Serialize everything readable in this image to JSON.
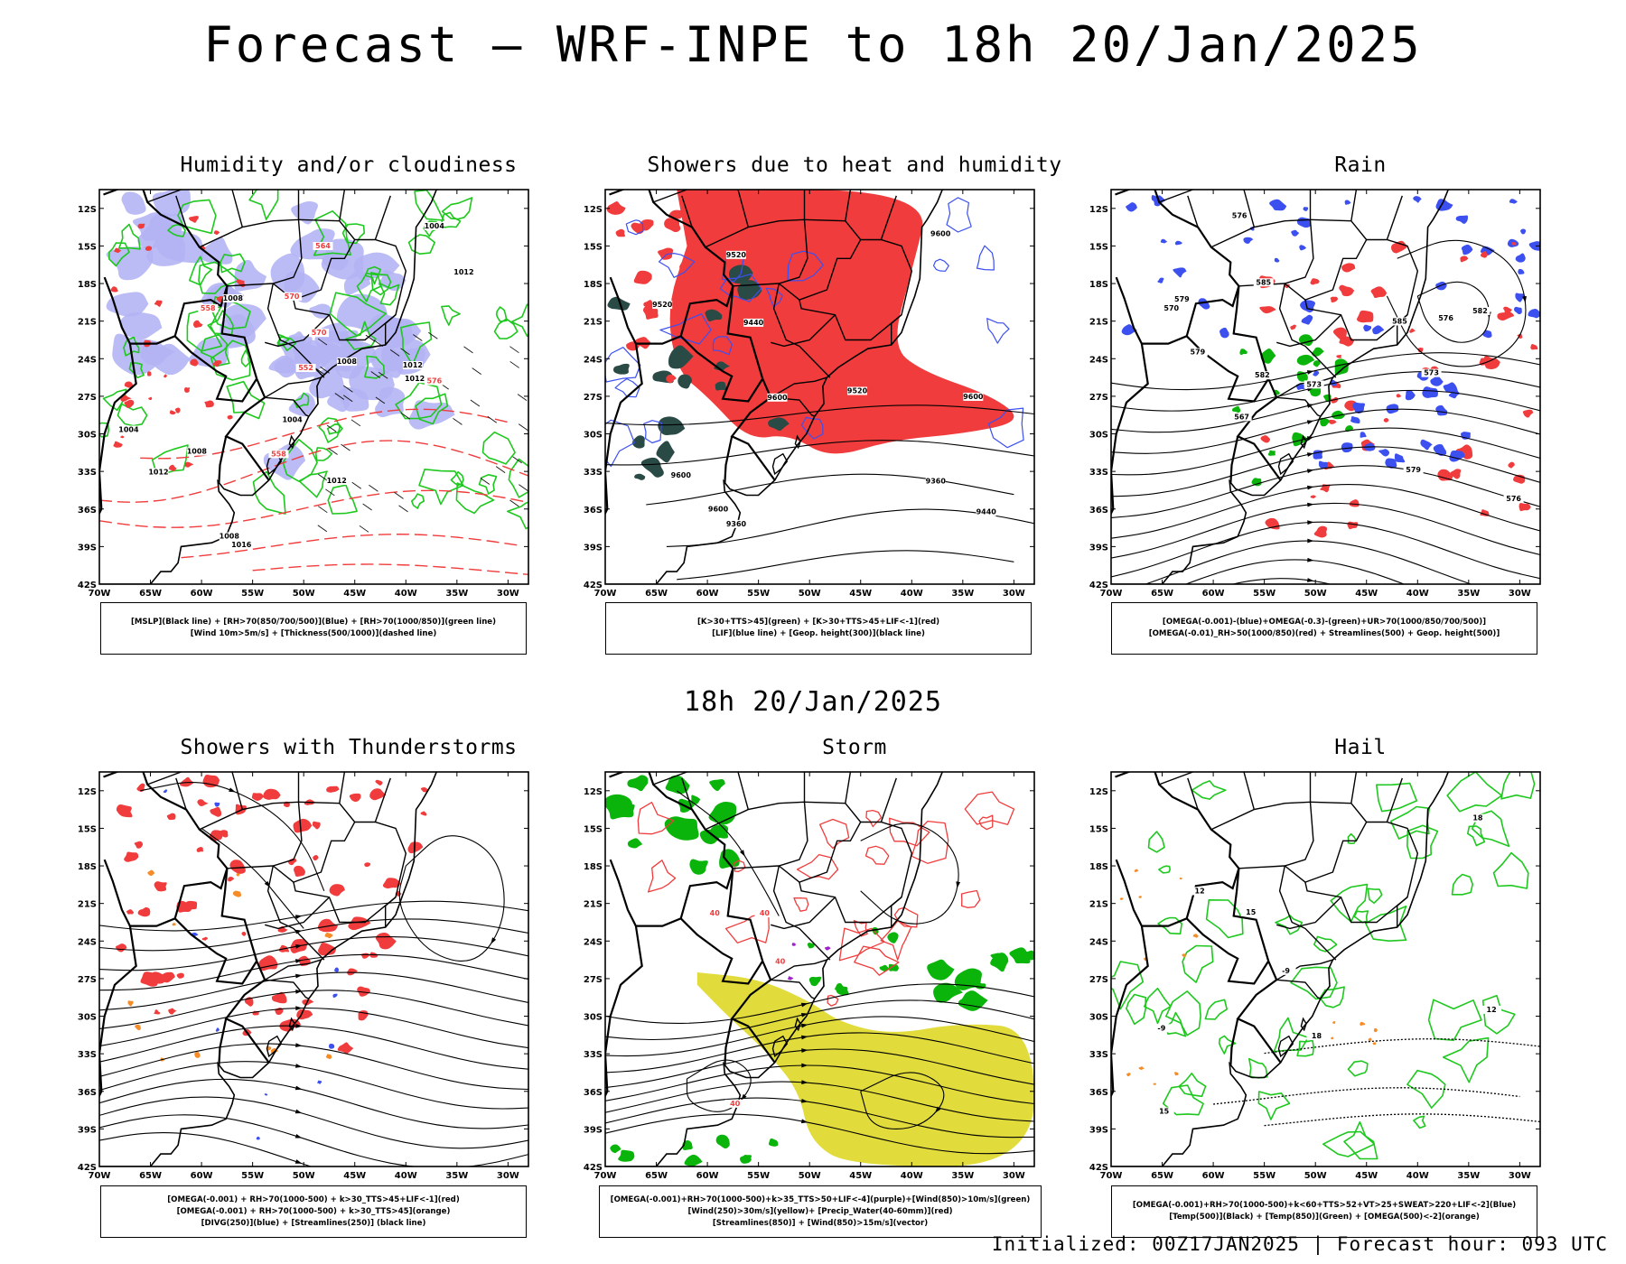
{
  "title": "Forecast — WRF-INPE to 18h 20/Jan/2025",
  "mid_title": "18h 20/Jan/2025",
  "footer": "Initialized: 00Z17JAN2025 | Forecast hour: 093 UTC",
  "axes": {
    "lat_labels": [
      "12S",
      "15S",
      "18S",
      "21S",
      "24S",
      "27S",
      "30S",
      "33S",
      "36S",
      "39S",
      "42S"
    ],
    "lon_labels": [
      "70W",
      "65W",
      "60W",
      "55W",
      "50W",
      "45W",
      "40W",
      "35W",
      "30W"
    ]
  },
  "colors": {
    "humidity_blue": "#b4b4f5",
    "green_line": "#1ec81e",
    "red_shade": "#f03c3c",
    "dark_teal": "#2a4a46",
    "blue_line": "#3c50f0",
    "yellow": "#e1dc3c",
    "green_fill": "#0ab40a",
    "orange": "#f58c28",
    "purple": "#a020d0"
  },
  "panels": [
    {
      "title": "Humidity and/or cloudiness",
      "legend": [
        "[MSLP](Black line) + [RH>70(850/700/500)](Blue) + [RH>70(1000/850)](green line)",
        "[Wind 10m>5m/s] + [Thickness(500/1000)](dashed line)"
      ],
      "labels": [
        "1008",
        "1012",
        "1004",
        "1008",
        "1008",
        "1012",
        "1004",
        "1008",
        "1012",
        "1012",
        "1016",
        "1012",
        "1004",
        "576",
        "570",
        "564",
        "558",
        "552",
        "558",
        "570"
      ]
    },
    {
      "title": "Showers due to heat and humidity",
      "legend": [
        "[K>30+TTS>45](green) + [K>30+TTS>45+LIF<-1](red)",
        "[LIF](blue line) + [Geop. height(300)](black line)"
      ],
      "labels": [
        "9600",
        "9600",
        "9600",
        "9600",
        "9520",
        "9600",
        "9520",
        "9520",
        "9440",
        "9440",
        "9360",
        "9360"
      ]
    },
    {
      "title": "Rain",
      "legend": [
        "[OMEGA(-0.001)-(blue)+OMEGA(-0.3)-(green)+UR>70(1000/850/700/500)]",
        "[OMEGA(-0.01)_RH>50(1000/850)(red) + Streamlines(500) + Geop. height(500)]"
      ],
      "labels": [
        "576",
        "585",
        "582",
        "585",
        "582",
        "579",
        "579",
        "576",
        "573",
        "570",
        "567",
        "576",
        "573",
        "579"
      ]
    },
    {
      "title": "Showers with Thunderstorms",
      "legend": [
        "[OMEGA(-0.001) + RH>70(1000-500) + k>30_TTS>45+LIF<-1](red)",
        "[OMEGA(-0.001) + RH>70(1000-500) + k>30_TTS>45](orange)",
        "[DIVG(250)](blue) + [Streamlines(250)] (black line)"
      ],
      "labels": []
    },
    {
      "title": "Storm",
      "legend": [
        "[OMEGA(-0.001)+RH>70(1000-500)+k>35_TTS>50+LIF<-4](purple)+[Wind(850)>10m/s](green)",
        "[Wind(250)>30m/s](yellow)+ [Precip_Water(40-60mm)](red)",
        "[Streamlines(850)] + [Wind(850)>15m/s](vector)"
      ],
      "labels": [
        "40",
        "40",
        "40",
        "40"
      ]
    },
    {
      "title": "Hail",
      "legend": [
        "[OMEGA(-0.001)+RH>70(1000-500)+k<60+TTS>52+VT>25+SWEAT>220+LIF<-2](Blue)",
        "[Temp(500)](Black) + [Temp(850)](Green) + [OMEGA(500)<-2](orange)",
        ""
      ],
      "labels": [
        "-9",
        "-9",
        "12",
        "12",
        "15",
        "18",
        "18",
        "15"
      ]
    }
  ]
}
